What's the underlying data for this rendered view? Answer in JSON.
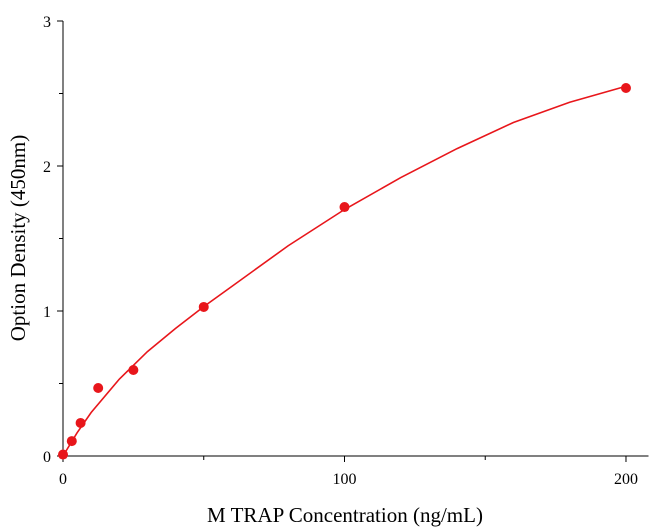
{
  "chart_data": {
    "type": "scatter",
    "x_label": "M TRAP Concentration (ng/mL)",
    "y_label": "Option Density (450nm)",
    "xlim": [
      0,
      208
    ],
    "ylim": [
      0,
      3
    ],
    "xticks": [
      0,
      100,
      200
    ],
    "yticks": [
      0,
      1,
      2,
      3
    ],
    "xminorticks": [
      50,
      150
    ],
    "yminorticks": [
      0.5,
      1.5,
      2.5
    ],
    "series": [
      {
        "kind": "points",
        "color": "#e8161b",
        "x": [
          0,
          3.125,
          6.25,
          12.5,
          25,
          50,
          100,
          200
        ],
        "values": [
          0.01,
          0.103,
          0.228,
          0.469,
          0.593,
          1.028,
          1.717,
          2.538
        ]
      },
      {
        "kind": "curve",
        "color": "#e8161b",
        "x": [
          0,
          5,
          10,
          20,
          30,
          40,
          50,
          60,
          80,
          100,
          120,
          140,
          160,
          180,
          200
        ],
        "values": [
          0,
          0.16,
          0.3,
          0.53,
          0.72,
          0.88,
          1.03,
          1.17,
          1.45,
          1.7,
          1.92,
          2.12,
          2.3,
          2.44,
          2.55
        ]
      }
    ]
  }
}
